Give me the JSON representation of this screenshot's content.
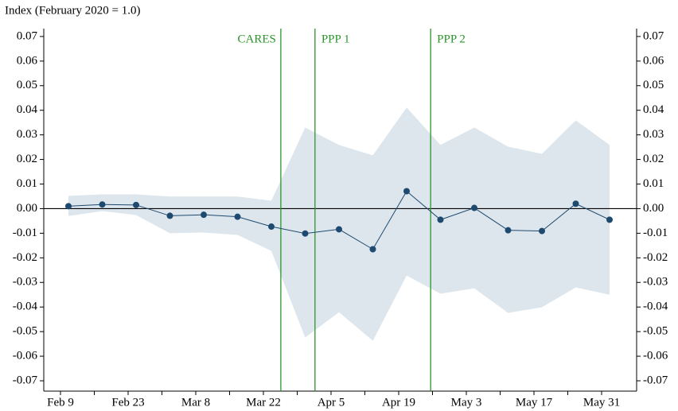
{
  "chart_data": {
    "type": "line",
    "y_label": "Index (February 2020 = 1.0)",
    "categories": [
      "Feb 9",
      null,
      "Feb 23",
      null,
      "Mar 8",
      null,
      "Mar 22",
      null,
      "Apr 5",
      null,
      "Apr 19",
      null,
      "May 3",
      null,
      "May 17",
      null,
      "May 31"
    ],
    "values": [
      0.001,
      0.0017,
      0.0015,
      -0.0029,
      -0.0025,
      -0.0033,
      -0.0073,
      -0.0101,
      -0.0084,
      -0.0165,
      0.0071,
      -0.0045,
      0.0003,
      -0.0088,
      -0.0091,
      0.002,
      -0.0045
    ],
    "upper": [
      0.0052,
      0.0058,
      0.0058,
      0.0049,
      0.0049,
      0.0049,
      0.0032,
      0.033,
      0.0259,
      0.0217,
      0.0411,
      0.0259,
      0.033,
      0.0252,
      0.0223,
      0.0359,
      0.0259
    ],
    "lower": [
      -0.003,
      -0.001,
      -0.0026,
      -0.01,
      -0.0097,
      -0.0107,
      -0.0172,
      -0.0524,
      -0.0421,
      -0.0537,
      -0.0272,
      -0.0346,
      -0.0324,
      -0.0424,
      -0.0401,
      -0.032,
      -0.035
    ],
    "color": "#1f4a70",
    "band_color": "#dce6ec",
    "ylim": [
      -0.0742,
      0.0732
    ],
    "yticks": [
      0.07,
      0.06,
      0.05,
      0.04,
      0.03,
      0.02,
      0.01,
      {
        "value": 0,
        "label": "0.00"
      },
      -0.01,
      -0.02,
      -0.03,
      -0.04,
      -0.05,
      -0.06,
      -0.07
    ],
    "events": [
      {
        "label": "CARES",
        "x": 6.28,
        "side": "left"
      },
      {
        "label": "PPP 1",
        "x": 7.29,
        "side": "right"
      },
      {
        "label": "PPP 2",
        "x": 10.71,
        "side": "right"
      }
    ],
    "event_color": "#2a962a"
  }
}
